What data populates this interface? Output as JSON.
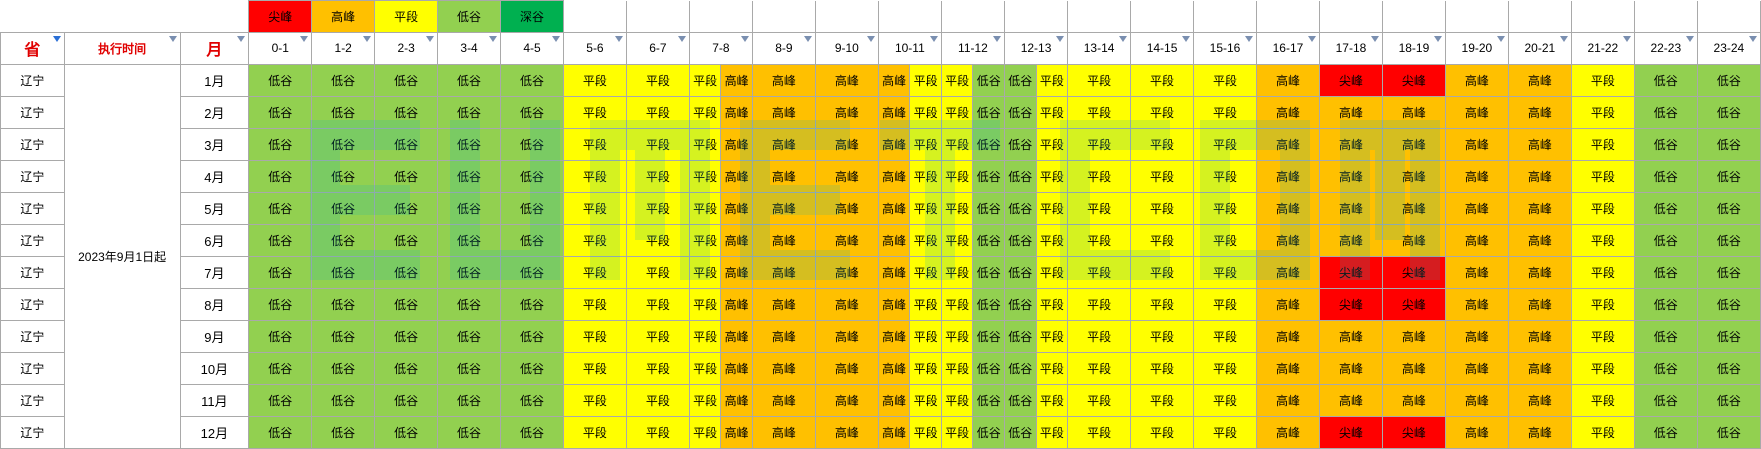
{
  "colors": {
    "尖峰": "#ff0000",
    "高峰": "#ffc000",
    "平段": "#ffff00",
    "低谷": "#92d050",
    "深谷": "#00b050",
    "header_red": "#e00000",
    "grid": "#a9a9a9"
  },
  "legend": [
    "尖峰",
    "高峰",
    "平段",
    "低谷",
    "深谷"
  ],
  "headers": {
    "province": "省",
    "exec_time": "执行时间",
    "month": "月",
    "hours": [
      "0-1",
      "1-2",
      "2-3",
      "3-4",
      "4-5",
      "5-6",
      "6-7",
      "7-8",
      "8-9",
      "9-10",
      "10-11",
      "11-12",
      "12-13",
      "13-14",
      "14-15",
      "15-16",
      "16-17",
      "17-18",
      "18-19",
      "19-20",
      "20-21",
      "21-22",
      "22-23",
      "23-24"
    ]
  },
  "exec_time_value": "2023年9月1日起",
  "rows": [
    {
      "province": "辽宁",
      "month": "1月",
      "slots": [
        "低谷",
        "低谷",
        "低谷",
        "低谷",
        "低谷",
        "平段",
        "平段",
        [
          "平段",
          "高峰"
        ],
        "高峰",
        "高峰",
        [
          "高峰",
          "平段"
        ],
        [
          "平段",
          "低谷"
        ],
        [
          "低谷",
          "平段"
        ],
        "平段",
        "平段",
        "平段",
        "高峰",
        "尖峰",
        "尖峰",
        "高峰",
        "高峰",
        "平段",
        "低谷",
        "低谷"
      ]
    },
    {
      "province": "辽宁",
      "month": "2月",
      "slots": [
        "低谷",
        "低谷",
        "低谷",
        "低谷",
        "低谷",
        "平段",
        "平段",
        [
          "平段",
          "高峰"
        ],
        "高峰",
        "高峰",
        [
          "高峰",
          "平段"
        ],
        [
          "平段",
          "低谷"
        ],
        [
          "低谷",
          "平段"
        ],
        "平段",
        "平段",
        "平段",
        "高峰",
        "高峰",
        "高峰",
        "高峰",
        "高峰",
        "平段",
        "低谷",
        "低谷"
      ]
    },
    {
      "province": "辽宁",
      "month": "3月",
      "slots": [
        "低谷",
        "低谷",
        "低谷",
        "低谷",
        "低谷",
        "平段",
        "平段",
        [
          "平段",
          "高峰"
        ],
        "高峰",
        "高峰",
        [
          "高峰",
          "平段"
        ],
        [
          "平段",
          "低谷"
        ],
        [
          "低谷",
          "平段"
        ],
        "平段",
        "平段",
        "平段",
        "高峰",
        "高峰",
        "高峰",
        "高峰",
        "高峰",
        "平段",
        "低谷",
        "低谷"
      ]
    },
    {
      "province": "辽宁",
      "month": "4月",
      "slots": [
        "低谷",
        "低谷",
        "低谷",
        "低谷",
        "低谷",
        "平段",
        "平段",
        [
          "平段",
          "高峰"
        ],
        "高峰",
        "高峰",
        [
          "高峰",
          "平段"
        ],
        [
          "平段",
          "低谷"
        ],
        [
          "低谷",
          "平段"
        ],
        "平段",
        "平段",
        "平段",
        "高峰",
        "高峰",
        "高峰",
        "高峰",
        "高峰",
        "平段",
        "低谷",
        "低谷"
      ]
    },
    {
      "province": "辽宁",
      "month": "5月",
      "slots": [
        "低谷",
        "低谷",
        "低谷",
        "低谷",
        "低谷",
        "平段",
        "平段",
        [
          "平段",
          "高峰"
        ],
        "高峰",
        "高峰",
        [
          "高峰",
          "平段"
        ],
        [
          "平段",
          "低谷"
        ],
        [
          "低谷",
          "平段"
        ],
        "平段",
        "平段",
        "平段",
        "高峰",
        "高峰",
        "高峰",
        "高峰",
        "高峰",
        "平段",
        "低谷",
        "低谷"
      ]
    },
    {
      "province": "辽宁",
      "month": "6月",
      "slots": [
        "低谷",
        "低谷",
        "低谷",
        "低谷",
        "低谷",
        "平段",
        "平段",
        [
          "平段",
          "高峰"
        ],
        "高峰",
        "高峰",
        [
          "高峰",
          "平段"
        ],
        [
          "平段",
          "低谷"
        ],
        [
          "低谷",
          "平段"
        ],
        "平段",
        "平段",
        "平段",
        "高峰",
        "高峰",
        "高峰",
        "高峰",
        "高峰",
        "平段",
        "低谷",
        "低谷"
      ]
    },
    {
      "province": "辽宁",
      "month": "7月",
      "slots": [
        "低谷",
        "低谷",
        "低谷",
        "低谷",
        "低谷",
        "平段",
        "平段",
        [
          "平段",
          "高峰"
        ],
        "高峰",
        "高峰",
        [
          "高峰",
          "平段"
        ],
        [
          "平段",
          "低谷"
        ],
        [
          "低谷",
          "平段"
        ],
        "平段",
        "平段",
        "平段",
        "高峰",
        "尖峰",
        "尖峰",
        "高峰",
        "高峰",
        "平段",
        "低谷",
        "低谷"
      ]
    },
    {
      "province": "辽宁",
      "month": "8月",
      "slots": [
        "低谷",
        "低谷",
        "低谷",
        "低谷",
        "低谷",
        "平段",
        "平段",
        [
          "平段",
          "高峰"
        ],
        "高峰",
        "高峰",
        [
          "高峰",
          "平段"
        ],
        [
          "平段",
          "低谷"
        ],
        [
          "低谷",
          "平段"
        ],
        "平段",
        "平段",
        "平段",
        "高峰",
        "尖峰",
        "尖峰",
        "高峰",
        "高峰",
        "平段",
        "低谷",
        "低谷"
      ]
    },
    {
      "province": "辽宁",
      "month": "9月",
      "slots": [
        "低谷",
        "低谷",
        "低谷",
        "低谷",
        "低谷",
        "平段",
        "平段",
        [
          "平段",
          "高峰"
        ],
        "高峰",
        "高峰",
        [
          "高峰",
          "平段"
        ],
        [
          "平段",
          "低谷"
        ],
        [
          "低谷",
          "平段"
        ],
        "平段",
        "平段",
        "平段",
        "高峰",
        "高峰",
        "高峰",
        "高峰",
        "高峰",
        "平段",
        "低谷",
        "低谷"
      ]
    },
    {
      "province": "辽宁",
      "month": "10月",
      "slots": [
        "低谷",
        "低谷",
        "低谷",
        "低谷",
        "低谷",
        "平段",
        "平段",
        [
          "平段",
          "高峰"
        ],
        "高峰",
        "高峰",
        [
          "高峰",
          "平段"
        ],
        [
          "平段",
          "低谷"
        ],
        [
          "低谷",
          "平段"
        ],
        "平段",
        "平段",
        "平段",
        "高峰",
        "高峰",
        "高峰",
        "高峰",
        "高峰",
        "平段",
        "低谷",
        "低谷"
      ]
    },
    {
      "province": "辽宁",
      "month": "11月",
      "slots": [
        "低谷",
        "低谷",
        "低谷",
        "低谷",
        "低谷",
        "平段",
        "平段",
        [
          "平段",
          "高峰"
        ],
        "高峰",
        "高峰",
        [
          "高峰",
          "平段"
        ],
        [
          "平段",
          "低谷"
        ],
        [
          "低谷",
          "平段"
        ],
        "平段",
        "平段",
        "平段",
        "高峰",
        "高峰",
        "高峰",
        "高峰",
        "高峰",
        "平段",
        "低谷",
        "低谷"
      ]
    },
    {
      "province": "辽宁",
      "month": "12月",
      "slots": [
        "低谷",
        "低谷",
        "低谷",
        "低谷",
        "低谷",
        "平段",
        "平段",
        [
          "平段",
          "高峰"
        ],
        "高峰",
        "高峰",
        [
          "高峰",
          "平段"
        ],
        [
          "平段",
          "低谷"
        ],
        [
          "低谷",
          "平段"
        ],
        "平段",
        "平段",
        "平段",
        "高峰",
        "尖峰",
        "尖峰",
        "高峰",
        "高峰",
        "平段",
        "低谷",
        "低谷"
      ]
    }
  ]
}
